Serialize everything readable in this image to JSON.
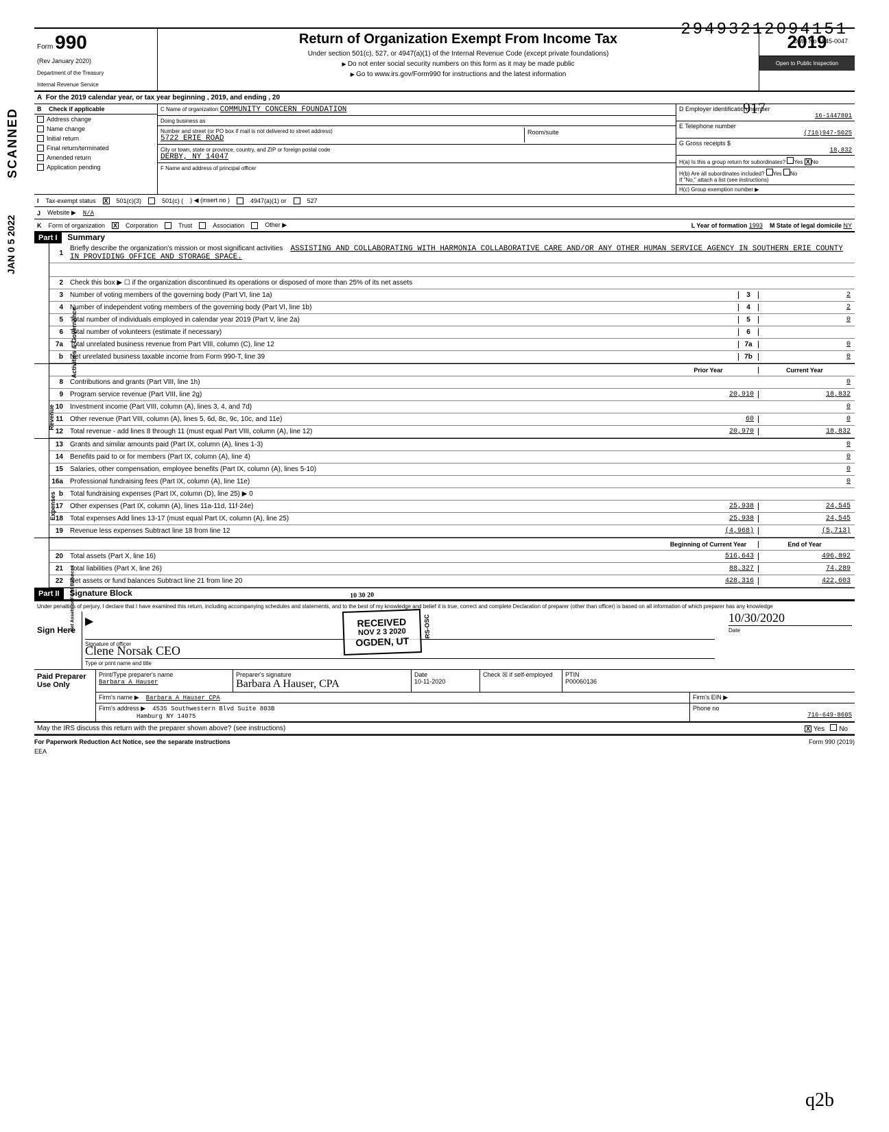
{
  "dln": "29493212094151",
  "omb": "OMB No 1545-0047",
  "form_number": "990",
  "rev": "(Rev January 2020)",
  "dept1": "Department of the Treasury",
  "dept2": "Internal Revenue Service",
  "title": "Return of Organization Exempt From Income Tax",
  "sub1": "Under section 501(c), 527, or 4947(a)(1) of the Internal Revenue Code (except private foundations)",
  "sub2": "Do not enter social security numbers on this form as it may be made public",
  "sub3": "Go to www.irs.gov/Form990 for instructions and the latest information",
  "tax_year": "2019",
  "open_text": "Open to Public Inspection",
  "year_line": "For the 2019 calendar year, or tax year beginning                                              , 2019, and ending                                     , 20",
  "scanned": "SCANNED",
  "jan_stamp": "JAN 0 5 2022",
  "b_header": "Check if applicable",
  "b_items": [
    "Address change",
    "Name change",
    "Initial return",
    "Final return/terminated",
    "Amended return",
    "Application pending"
  ],
  "c_label": "C  Name of organization",
  "c_name": "COMMUNITY CONCERN FOUNDATION",
  "dba_label": "Doing business as",
  "street_label": "Number and street (or PO box if mail is not delivered to street address)",
  "room_label": "Room/suite",
  "street": "5722 ERIE ROAD",
  "city_label": "City or town, state or province, country, and ZIP or foreign postal code",
  "city": "DERBY, NY 14047",
  "f_label": "F  Name and address of principal officer",
  "d_label": "D  Employer identification number",
  "ein": "16-1447801",
  "e_label": "E  Telephone number",
  "phone": "(716)947-5025",
  "g_label": "G  Gross receipts",
  "gross": "18,832",
  "ha_label": "H(a) Is this a group return for subordinates?",
  "hb_label": "H(b) Are all subordinates included?",
  "hc_label": "H(c)  Group exemption number",
  "h_note": "If \"No,\" attach a list (see instructions)",
  "i_label": "Tax-exempt status",
  "i_501c3": "501(c)(3)",
  "i_501c": "501(c) (",
  "i_insert": ") ◀ (insert no )",
  "i_4947": "4947(a)(1) or",
  "i_527": "527",
  "j_label": "Website ▶",
  "website": "N/A",
  "k_label": "Form of organization",
  "k_corp": "Corporation",
  "k_trust": "Trust",
  "k_assoc": "Association",
  "k_other": "Other ▶",
  "l_label": "L  Year of formation",
  "l_year": "1993",
  "m_label": "M  State of legal domicile",
  "m_state": "NY",
  "part1_hdr": "Part I",
  "part1_title": "Summary",
  "line1_label": "Briefly describe the organization's mission or most significant activities",
  "line1_text": "ASSISTING AND COLLABORATING WITH HARMONIA COLLABORATIVE CARE AND/OR ANY OTHER HUMAN SERVICE AGENCY IN SOUTHERN ERIE COUNTY IN PROVIDING OFFICE AND STORAGE SPACE.",
  "line2": "Check this box ▶ ☐ if the organization discontinued its operations or disposed of more than 25% of its net assets",
  "lines": [
    {
      "n": "3",
      "d": "Number of voting members of the governing body (Part VI, line 1a)",
      "box": "3",
      "cur": "2"
    },
    {
      "n": "4",
      "d": "Number of independent voting members of the governing body (Part VI, line 1b)",
      "box": "4",
      "cur": "2"
    },
    {
      "n": "5",
      "d": "Total number of individuals employed in calendar year 2019 (Part V, line 2a)",
      "box": "5",
      "cur": "0"
    },
    {
      "n": "6",
      "d": "Total number of volunteers (estimate if necessary)",
      "box": "6",
      "cur": ""
    },
    {
      "n": "7a",
      "d": "Total unrelated business revenue from Part VIII, column (C), line 12",
      "box": "7a",
      "cur": "0"
    },
    {
      "n": "b",
      "d": "Net unrelated business taxable income from Form 990-T, line 39",
      "box": "7b",
      "cur": "0"
    }
  ],
  "prior_hdr": "Prior Year",
  "curr_hdr": "Current Year",
  "rev_lines": [
    {
      "n": "8",
      "d": "Contributions and grants (Part VIII, line 1h)",
      "p": "",
      "c": "0"
    },
    {
      "n": "9",
      "d": "Program service revenue (Part VIII, line 2g)",
      "p": "20,910",
      "c": "18,832"
    },
    {
      "n": "10",
      "d": "Investment income (Part VIII, column (A), lines 3, 4, and 7d)",
      "p": "",
      "c": "0"
    },
    {
      "n": "11",
      "d": "Other revenue (Part VIII, column (A), lines 5, 6d, 8c, 9c, 10c, and 11e)",
      "p": "60",
      "c": "0"
    },
    {
      "n": "12",
      "d": "Total revenue - add lines 8 through 11 (must equal Part VIII, column (A), line 12)",
      "p": "20,970",
      "c": "18,832"
    }
  ],
  "exp_lines": [
    {
      "n": "13",
      "d": "Grants and similar amounts paid (Part IX, column (A), lines 1-3)",
      "p": "",
      "c": "0"
    },
    {
      "n": "14",
      "d": "Benefits paid to or for members (Part IX, column (A), line 4)",
      "p": "",
      "c": "0"
    },
    {
      "n": "15",
      "d": "Salaries, other compensation, employee benefits (Part IX, column (A), lines 5-10)",
      "p": "",
      "c": "0"
    },
    {
      "n": "16a",
      "d": "Professional fundraising fees (Part IX, column (A), line 11e)",
      "p": "",
      "c": "0"
    },
    {
      "n": "b",
      "d": "Total fundraising expenses (Part IX, column (D), line 25)  ▶                    0",
      "p": "SHADE",
      "c": "SHADE"
    },
    {
      "n": "17",
      "d": "Other expenses (Part IX, column (A), lines 11a-11d, 11f-24e)",
      "p": "25,938",
      "c": "24,545"
    },
    {
      "n": "18",
      "d": "Total expenses  Add lines 13-17 (must equal Part IX, column (A), line 25)",
      "p": "25,938",
      "c": "24,545"
    },
    {
      "n": "19",
      "d": "Revenue less expenses  Subtract line 18 from line 12",
      "p": "(4,968)",
      "c": "(5,713)"
    }
  ],
  "boy_hdr": "Beginning of Current Year",
  "eoy_hdr": "End of Year",
  "na_lines": [
    {
      "n": "20",
      "d": "Total assets (Part X, line 16)",
      "p": "516,643",
      "c": "496,892"
    },
    {
      "n": "21",
      "d": "Total liabilities (Part X, line 26)",
      "p": "88,327",
      "c": "74,289"
    },
    {
      "n": "22",
      "d": "Net assets or fund balances  Subtract line 21 from line 20",
      "p": "428,316",
      "c": "422,603"
    }
  ],
  "side_gov": "Activities & Governance",
  "side_rev": "Revenue",
  "side_exp": "Expenses",
  "side_na": "Net Assets or Fund Balances",
  "part2_hdr": "Part II",
  "part2_title": "Signature Block",
  "decl": "Under penalties of perjury, I declare that I have examined this return, including accompanying schedules and statements, and to the best of my knowledge and belief it is true, correct and complete Declaration of preparer (other than officer) is based on all information of which preparer has any knowledge",
  "sign_here": "Sign Here",
  "sig_officer_label": "Signature of officer",
  "sig_name_label": "Type or print name and title",
  "sig_name": "Clene  Norsak       CEO",
  "sig_date_label": "Date",
  "sig_date": "10/30/2020",
  "paid_label": "Paid Preparer Use Only",
  "prep_name_label": "Print/Type preparer's name",
  "prep_name": "Barbara A Hauser",
  "prep_sig_label": "Preparer's signature",
  "prep_sig": "Barbara A Hauser, CPA",
  "prep_date": "10-11-2020",
  "prep_check_label": "Check ☒ if self-employed",
  "ptin_label": "PTIN",
  "ptin": "P00060136",
  "firm_name_label": "Firm's name  ▶",
  "firm_name": "Barbara A  Hauser CPA",
  "firm_ein_label": "Firm's EIN ▶",
  "firm_addr_label": "Firm's address ▶",
  "firm_addr1": "4535 Southwestern Blvd Suite 803B",
  "firm_addr2": "Hamburg NY 14075",
  "firm_phone_label": "Phone no",
  "firm_phone": "716-649-8605",
  "discuss": "May the IRS discuss this return with the preparer shown above? (see instructions)",
  "discuss_yes": "Yes",
  "discuss_no": "No",
  "pra": "For Paperwork Reduction Act Notice, see the separate instructions",
  "eea": "EEA",
  "form_foot": "Form 990 (2019)",
  "stamp_received": "RECEIVED",
  "stamp_date": "NOV 2 3 2020",
  "stamp_loc": "OGDEN, UT",
  "stamp_irs": "IRS-OSC",
  "hand_date": "10 30 20",
  "hand_init": "q2b",
  "hand_917": "917"
}
